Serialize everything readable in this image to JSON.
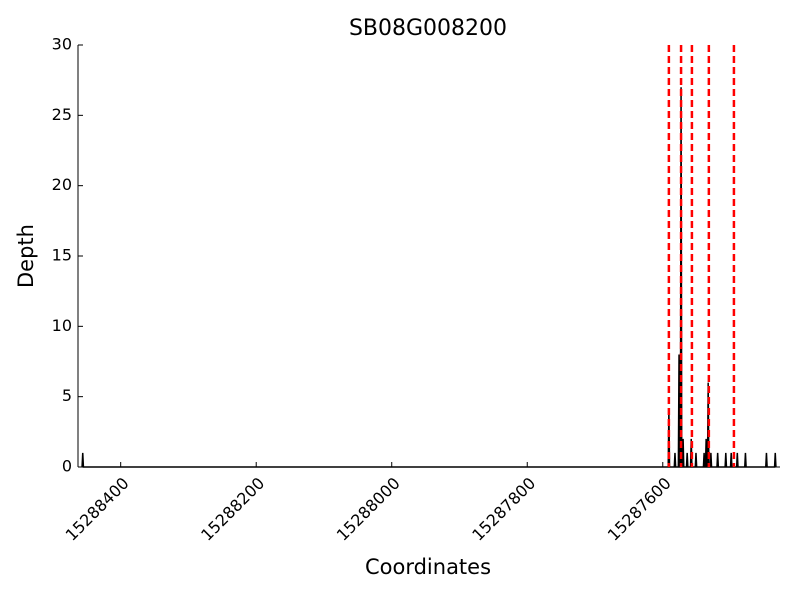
{
  "chart_data": {
    "type": "line",
    "title": "SB08G008200",
    "xlabel": "Coordinates",
    "ylabel": "Depth",
    "xlim": [
      15288463,
      15287427
    ],
    "xticks": [
      15288400,
      15288200,
      15288000,
      15287800,
      15287600
    ],
    "ylim": [
      0,
      30
    ],
    "yticks": [
      0,
      5,
      10,
      15,
      20,
      25,
      30
    ],
    "series": [
      {
        "color": "#000000",
        "x": [
          15288457,
          15288456,
          15288455,
          15287592,
          15287591,
          15287590,
          15287583,
          15287582,
          15287581,
          15287577,
          15287576,
          15287575,
          15287574,
          15287573,
          15287572,
          15287571,
          15287570,
          15287569,
          15287565,
          15287564,
          15287563,
          15287559,
          15287558,
          15287557,
          15287552,
          15287551,
          15287550,
          15287540,
          15287539,
          15287538,
          15287537,
          15287536,
          15287535,
          15287534,
          15287533,
          15287532,
          15287530,
          15287529,
          15287528,
          15287520,
          15287519,
          15287518,
          15287508,
          15287507,
          15287506,
          15287500,
          15287499,
          15287498,
          15287491,
          15287490,
          15287489,
          15287479,
          15287478,
          15287477,
          15287448,
          15287447,
          15287446,
          15287435,
          15287434,
          15287433
        ],
        "values": [
          0,
          1,
          0,
          0,
          4,
          0,
          0,
          1,
          0,
          0,
          8,
          0,
          0,
          27,
          0,
          0,
          2,
          0,
          0,
          1,
          0,
          0,
          2,
          0,
          0,
          1,
          0,
          0,
          1,
          0,
          0,
          2,
          0,
          0,
          6,
          0,
          0,
          1,
          0,
          0,
          1,
          0,
          0,
          1,
          0,
          0,
          1,
          0,
          0,
          1,
          0,
          0,
          1,
          0,
          0,
          1,
          0,
          0,
          1,
          0
        ]
      }
    ],
    "vlines": {
      "color": "#ff0000",
      "values": [
        15287591,
        15287573,
        15287557,
        15287532,
        15287495
      ]
    }
  }
}
